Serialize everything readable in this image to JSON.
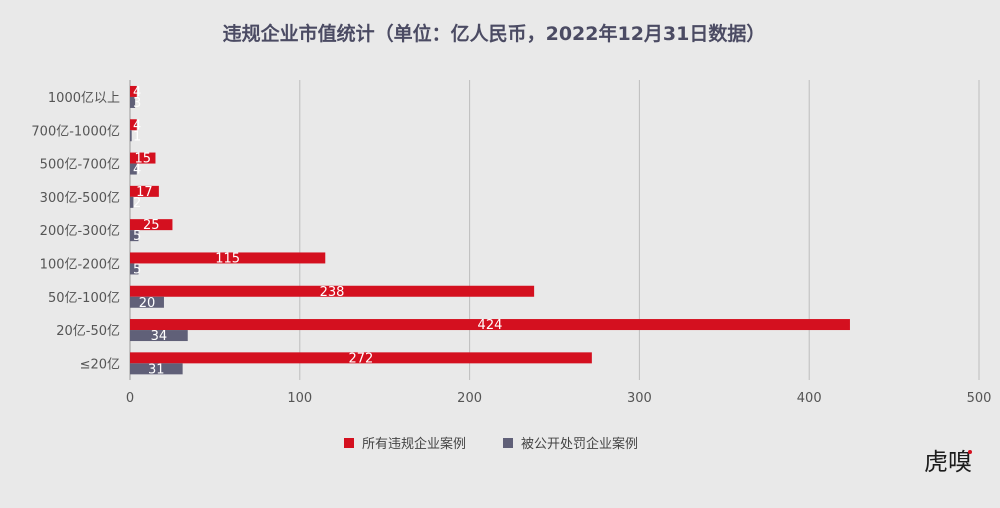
{
  "chart_data": {
    "type": "bar",
    "orientation": "horizontal",
    "title": "违规企业市值统计（单位：亿人民币，2022年12月31日数据）",
    "categories": [
      "≤20亿",
      "20亿-50亿",
      "50亿-100亿",
      "100亿-200亿",
      "200亿-300亿",
      "300亿-500亿",
      "500亿-700亿",
      "700亿-1000亿",
      "1000亿以上"
    ],
    "series": [
      {
        "name": "所有违规企业案例",
        "values": [
          272,
          424,
          238,
          115,
          25,
          17,
          15,
          4,
          4
        ],
        "color": "#d4101f"
      },
      {
        "name": "被公开处罚企业案例",
        "values": [
          31,
          34,
          20,
          5,
          5,
          2,
          4,
          1,
          3
        ],
        "color": "#606078"
      }
    ],
    "xlim": [
      0,
      500
    ],
    "xticks": [
      "0",
      "100",
      "200",
      "300",
      "400",
      "500"
    ],
    "grid": "vertical",
    "legend_position": "bottom"
  },
  "brand": {
    "logo_text": "虎嗅",
    "accent_color": "#d4101f"
  }
}
